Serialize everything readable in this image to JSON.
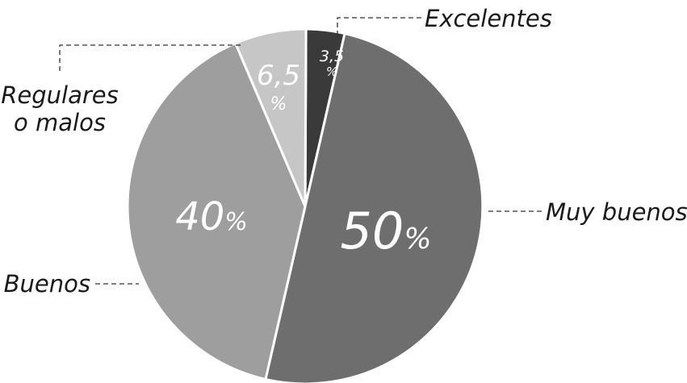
{
  "chart_data": {
    "type": "pie",
    "slices": [
      {
        "label": "Excelentes",
        "value": 3.5,
        "value_label": "3,5",
        "unit": "%",
        "color": "#3a3a3a"
      },
      {
        "label": "Muy buenos",
        "value": 50,
        "value_label": "50",
        "unit": "%",
        "color": "#6e6e6e"
      },
      {
        "label": "Buenos",
        "value": 40,
        "value_label": "40",
        "unit": "%",
        "color": "#9e9e9e"
      },
      {
        "label": "Regulares o malos",
        "label_lines": [
          "Regulares",
          "o malos"
        ],
        "value": 6.5,
        "value_label": "6,5",
        "unit": "%",
        "color": "#c6c6c6"
      }
    ],
    "start": "top",
    "direction": "clockwise"
  }
}
